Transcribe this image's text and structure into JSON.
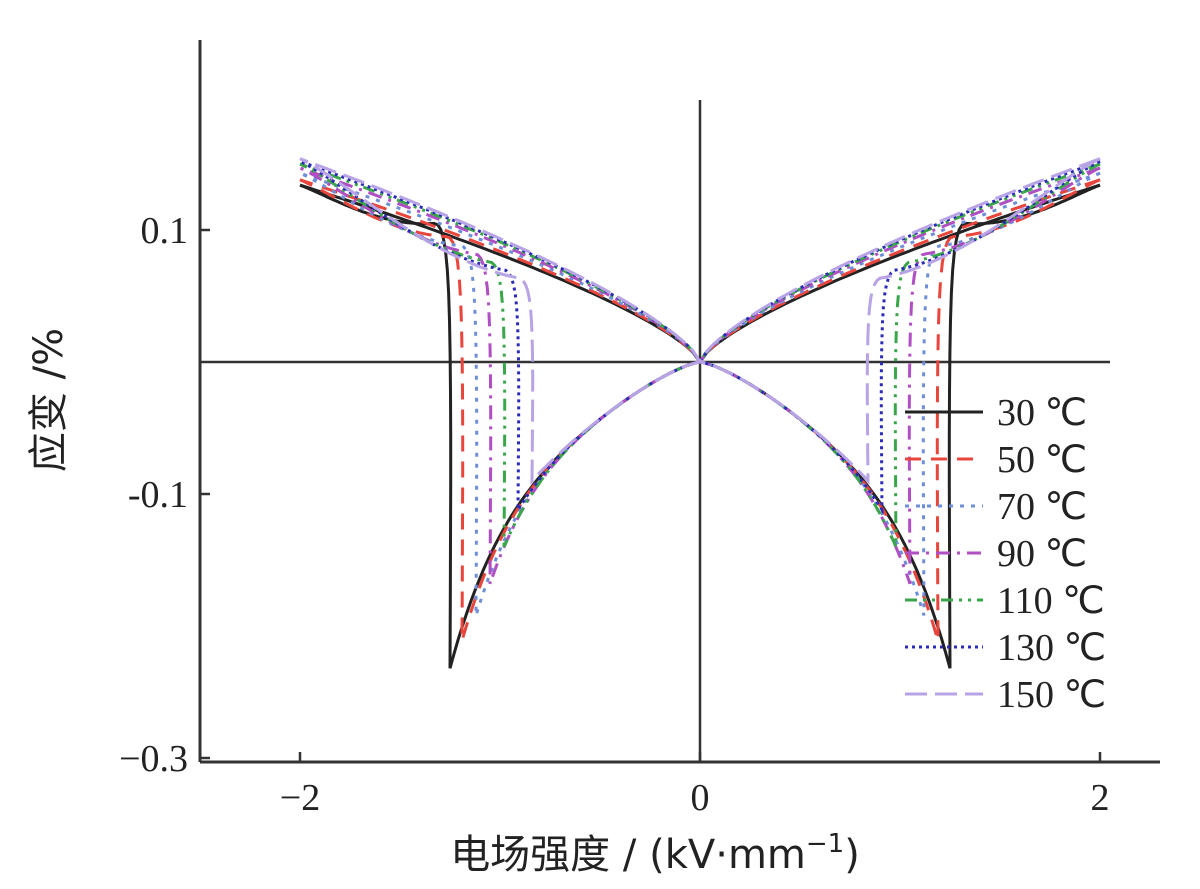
{
  "chart_data": {
    "type": "line",
    "xlabel": "电场强度 / (kV·mm",
    "xlabel_sup": "−1",
    "xlabel_close": ")",
    "ylabel": "应变 /%",
    "xlim": [
      -2.5,
      2.5
    ],
    "ylim": [
      -0.3,
      0.2
    ],
    "x_ticks": [
      -2,
      0,
      2
    ],
    "x_tick_labels": [
      "−2",
      "0",
      "2"
    ],
    "y_ticks": [
      0.1,
      -0.1,
      -0.3
    ],
    "y_tick_labels": [
      "0.1",
      "-0.1",
      "−0.3"
    ],
    "grid": false,
    "legend_position": "lower-right",
    "series": [
      {
        "name": "30 ℃",
        "color": "#222222",
        "dash": "solid",
        "coercive_field": 1.2,
        "min_strain": -0.232,
        "max_strain": 0.134,
        "switch_top": 0.105
      },
      {
        "name": "50 ℃",
        "color": "#e8453c",
        "dash": "dashed",
        "coercive_field": 1.14,
        "min_strain": -0.211,
        "max_strain": 0.138,
        "switch_top": 0.095
      },
      {
        "name": "70 ℃",
        "color": "#6e8fd8",
        "dash": "dotted",
        "coercive_field": 1.07,
        "min_strain": -0.192,
        "max_strain": 0.143,
        "switch_top": 0.088
      },
      {
        "name": "90 ℃",
        "color": "#b04ec4",
        "dash": "dashdot",
        "coercive_field": 1.0,
        "min_strain": -0.168,
        "max_strain": 0.147,
        "switch_top": 0.082
      },
      {
        "name": "110 ℃",
        "color": "#3aa64a",
        "dash": "dashdotdot",
        "coercive_field": 0.93,
        "min_strain": -0.14,
        "max_strain": 0.15,
        "switch_top": 0.076
      },
      {
        "name": "130 ℃",
        "color": "#2b2bb8",
        "dash": "densedot",
        "coercive_field": 0.86,
        "min_strain": -0.112,
        "max_strain": 0.152,
        "switch_top": 0.07
      },
      {
        "name": "150 ℃",
        "color": "#b7a3e6",
        "dash": "longdash",
        "coercive_field": 0.79,
        "min_strain": -0.09,
        "max_strain": 0.154,
        "switch_top": 0.064
      }
    ]
  }
}
